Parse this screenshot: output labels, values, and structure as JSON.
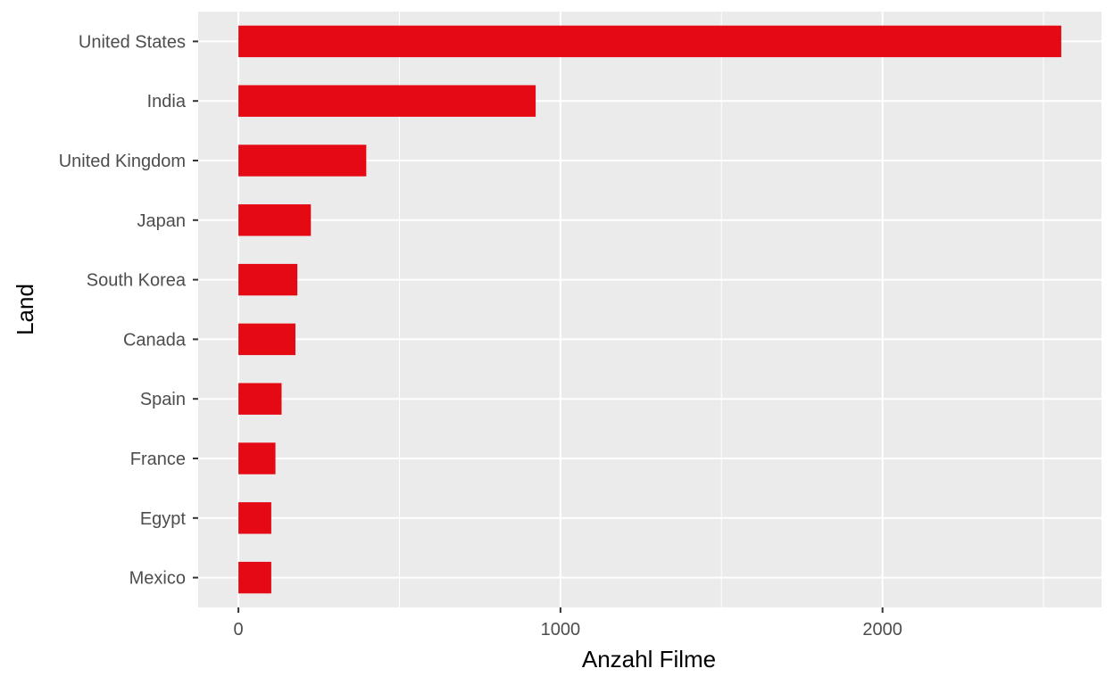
{
  "chart_data": {
    "type": "bar",
    "orientation": "horizontal",
    "categories": [
      "United States",
      "India",
      "United Kingdom",
      "Japan",
      "South Korea",
      "Canada",
      "Spain",
      "France",
      "Egypt",
      "Mexico"
    ],
    "values": [
      2555,
      923,
      397,
      225,
      183,
      177,
      134,
      115,
      102,
      102
    ],
    "xlabel": "Anzahl Filme",
    "ylabel": "Land",
    "xticks": [
      0,
      1000,
      2000
    ],
    "xlim": [
      -125,
      2680
    ],
    "bar_color": "#e50914",
    "panel_background": "#ebebeb",
    "grid": true,
    "legend": "none"
  }
}
